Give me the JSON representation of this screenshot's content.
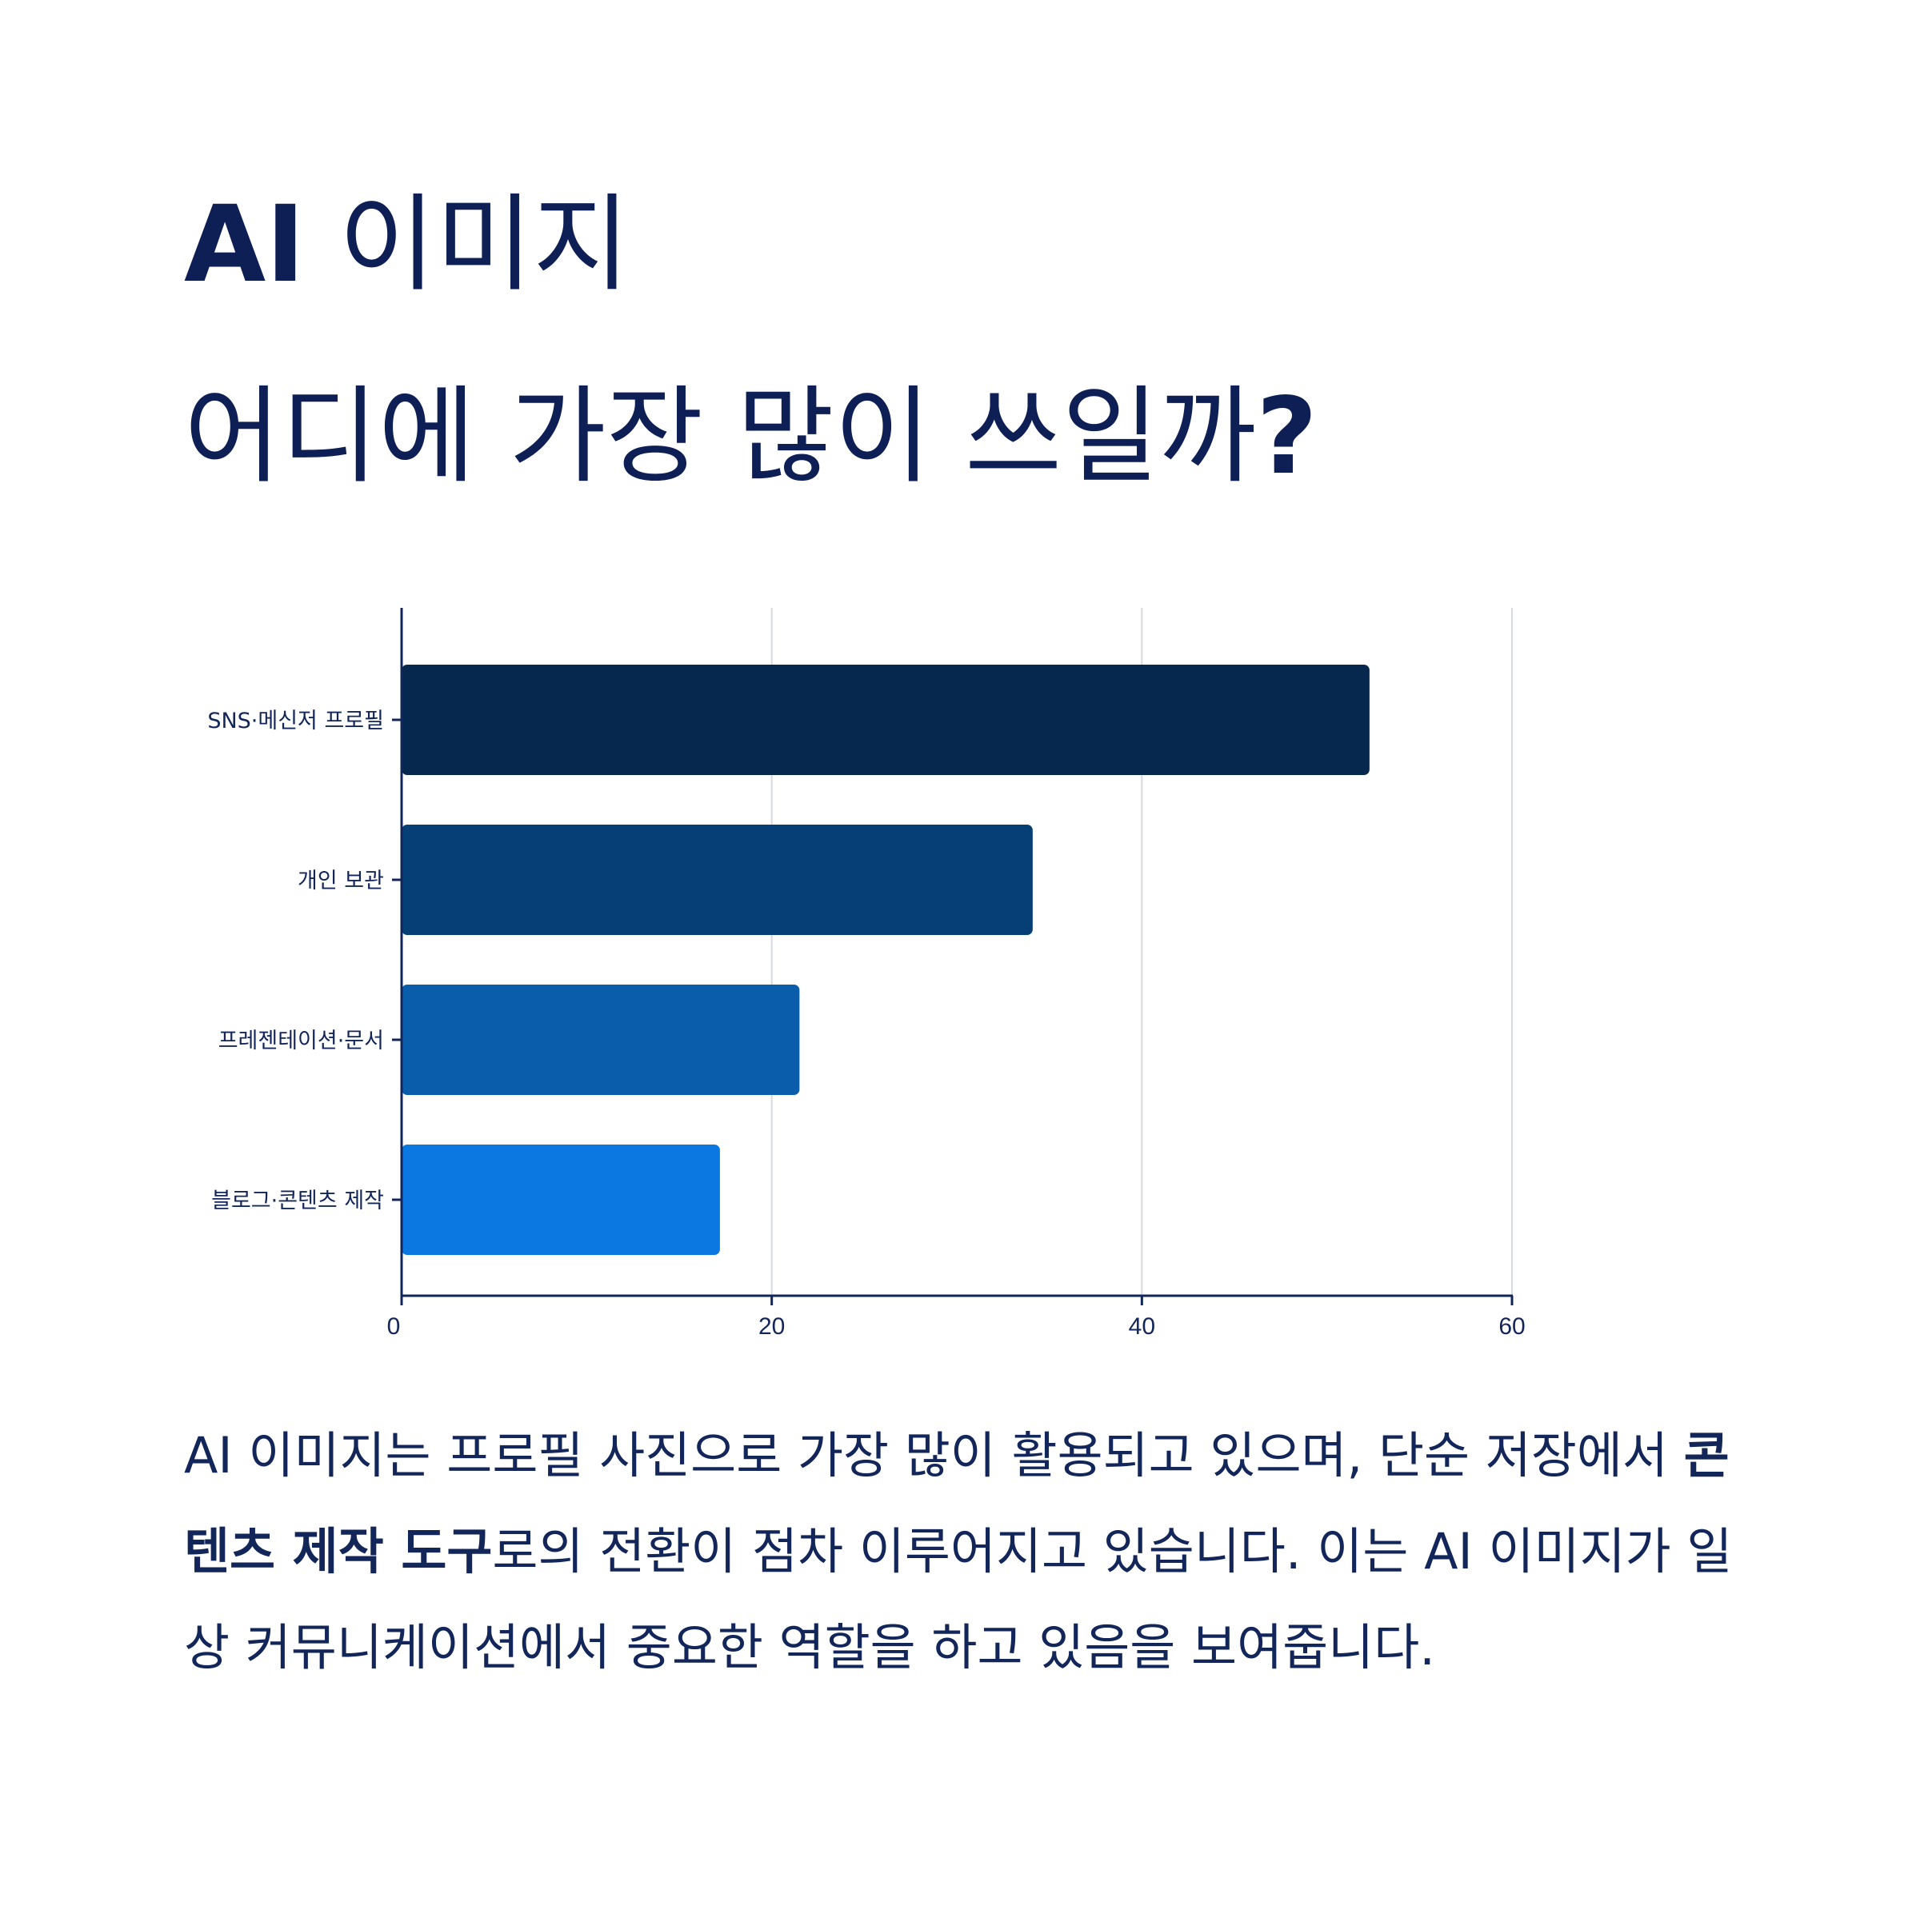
{
  "title": {
    "line1_bold": "AI",
    "line1_rest": " 이미지",
    "line2_main": "어디에 가장 많이 쓰일까",
    "line2_mark": "?"
  },
  "chart_data": {
    "type": "bar",
    "orientation": "horizontal",
    "categories": [
      "SNS·메신저 프로필",
      "개인 보관",
      "프레젠테이션·문서",
      "블로그·콘텐츠 제작"
    ],
    "values": [
      52.3,
      34.1,
      21.5,
      17.2
    ],
    "colors": [
      "#06284e",
      "#063f75",
      "#0a5dab",
      "#0a78e0"
    ],
    "xticks": [
      0,
      20,
      40,
      60
    ],
    "xlim": [
      0,
      60
    ],
    "grid": true,
    "legend": "none"
  },
  "description": {
    "part1": "AI 이미지는 프로필 사진으로 가장 많이 활용되고 있으며, 단순 저장에서 ",
    "bold": "콘텐츠 제작 도구",
    "part2": "로의 전환이 점차 이루어지고 있습니다. 이는 AI 이미지가 일상 커뮤니케이션에서 중요한 역할을 하고 있음을 보여줍니다."
  }
}
